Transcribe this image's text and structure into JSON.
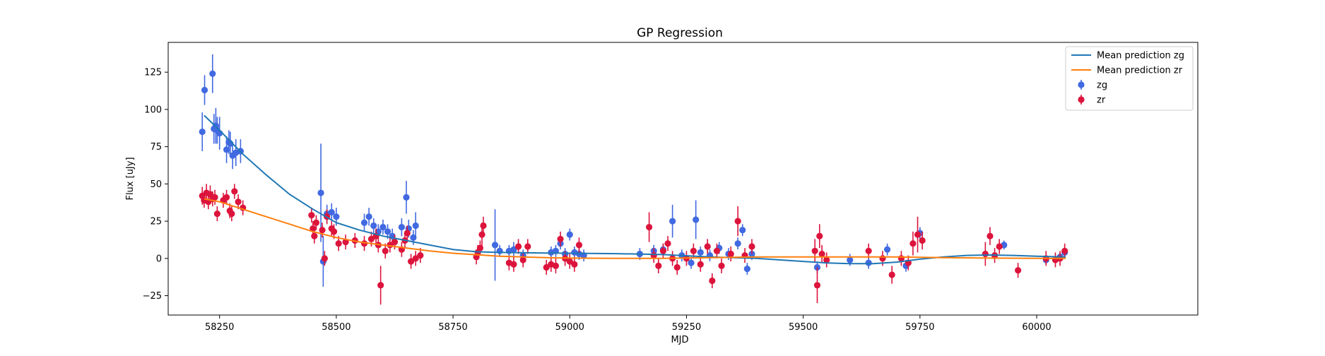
{
  "chart_data": {
    "type": "scatter",
    "title": "GP Regression",
    "xlabel": "MJD",
    "ylabel": "Flux [uJy]",
    "xlim": [
      58140,
      60345
    ],
    "ylim": [
      -38,
      145
    ],
    "xticks": [
      58250,
      58500,
      58750,
      59000,
      59250,
      59500,
      59750,
      60000
    ],
    "yticks": [
      -25,
      0,
      25,
      50,
      75,
      100,
      125
    ],
    "grid": false,
    "legend_position": "top-right",
    "colors": {
      "zg_points": "#4169e1",
      "zr_points": "#dc143c",
      "zg_line": "#1f77b4",
      "zr_line": "#ff7f0e"
    },
    "series": [
      {
        "name": "Mean prediction zg",
        "kind": "line",
        "x": [
          58217,
          58250,
          58300,
          58350,
          58400,
          58450,
          58500,
          58550,
          58600,
          58650,
          58700,
          58750,
          58800,
          58850,
          58900,
          58950,
          59000,
          59100,
          59200,
          59250,
          59300,
          59400,
          59500,
          59550,
          59600,
          59650,
          59700,
          59750,
          59800,
          59850,
          59900,
          59950,
          60000,
          60062
        ],
        "y": [
          96,
          86,
          70,
          56,
          43,
          33,
          24,
          19,
          15,
          12,
          9,
          6,
          4.5,
          4,
          3.8,
          3.6,
          3.5,
          3.2,
          2.6,
          1.8,
          1.0,
          0,
          -2,
          -3,
          -3.5,
          -3.5,
          -2.5,
          -0.5,
          1,
          2,
          2.3,
          2,
          1.5,
          1
        ]
      },
      {
        "name": "Mean prediction zr",
        "kind": "line",
        "x": [
          58217,
          58250,
          58300,
          58350,
          58400,
          58450,
          58500,
          58550,
          58600,
          58650,
          58700,
          58750,
          58800,
          58850,
          58900,
          58950,
          59000,
          59100,
          59200,
          59300,
          59400,
          59500,
          59600,
          59700,
          59750,
          59800,
          59900,
          60000,
          60062
        ],
        "y": [
          40,
          38,
          33,
          28,
          23,
          18,
          14,
          11,
          9,
          7,
          5,
          3.5,
          2.5,
          1.5,
          1,
          0.5,
          0.2,
          0,
          0,
          0.5,
          1,
          1,
          1,
          1,
          0.8,
          0.5,
          0.2,
          0,
          0
        ]
      },
      {
        "name": "zg",
        "kind": "errorbar",
        "x": [
          58213,
          58218,
          58235,
          58238,
          58242,
          58245,
          58250,
          58265,
          58270,
          58273,
          58278,
          58285,
          58295,
          58467,
          58472,
          58480,
          58490,
          58500,
          58560,
          58570,
          58580,
          58590,
          58600,
          58610,
          58620,
          58640,
          58650,
          58655,
          58665,
          58670,
          58840,
          58850,
          58870,
          58880,
          58900,
          58960,
          58970,
          58980,
          58990,
          59000,
          59010,
          59020,
          59030,
          59150,
          59180,
          59200,
          59220,
          59240,
          59260,
          59270,
          59280,
          59300,
          59320,
          59340,
          59360,
          59370,
          59380,
          59390,
          59530,
          59600,
          59640,
          59680,
          59720,
          59750,
          59930,
          60020,
          60050,
          60060
        ],
        "y": [
          85,
          113,
          124,
          87,
          89,
          86,
          84,
          73,
          78,
          77,
          69,
          71,
          72,
          44,
          -2,
          30,
          31,
          28,
          24,
          28,
          22,
          18,
          21,
          18,
          15,
          21,
          41,
          20,
          14,
          22,
          9,
          5,
          5,
          6,
          2,
          4,
          5,
          10,
          3,
          16,
          4,
          3,
          2,
          3,
          5,
          6,
          25,
          2,
          -3,
          26,
          4,
          2,
          7,
          3,
          10,
          19,
          -7,
          3,
          -6,
          -1,
          -3,
          6,
          -5,
          17,
          9,
          -1,
          1,
          4
        ],
        "yerr": [
          13,
          10,
          13,
          10,
          12,
          9,
          11,
          9,
          8,
          8,
          9,
          9,
          8,
          33,
          17,
          6,
          6,
          6,
          6,
          6,
          5,
          5,
          5,
          5,
          5,
          6,
          11,
          6,
          5,
          9,
          24,
          4,
          4,
          5,
          4,
          4,
          4,
          4,
          4,
          4,
          4,
          4,
          4,
          4,
          4,
          4,
          11,
          4,
          4,
          13,
          4,
          4,
          4,
          4,
          4,
          4,
          4,
          4,
          4,
          4,
          4,
          4,
          4,
          4,
          3,
          3,
          3,
          4
        ]
      },
      {
        "name": "zr",
        "kind": "errorbar",
        "x": [
          58213,
          58217,
          58222,
          58226,
          58230,
          58235,
          58240,
          58245,
          58258,
          58265,
          58272,
          58276,
          58282,
          58290,
          58300,
          58447,
          58450,
          58453,
          58457,
          58470,
          58475,
          58480,
          58490,
          58495,
          58505,
          58520,
          58540,
          58560,
          58575,
          58585,
          58590,
          58595,
          58605,
          58615,
          58625,
          58640,
          58647,
          58652,
          58660,
          58670,
          58680,
          58800,
          58803,
          58808,
          58812,
          58815,
          58870,
          58880,
          58890,
          58900,
          58910,
          58950,
          58960,
          58970,
          58980,
          58990,
          59000,
          59010,
          59020,
          59170,
          59180,
          59190,
          59200,
          59210,
          59220,
          59230,
          59250,
          59265,
          59280,
          59295,
          59305,
          59315,
          59325,
          59345,
          59360,
          59375,
          59390,
          59525,
          59530,
          59535,
          59540,
          59550,
          59640,
          59670,
          59690,
          59710,
          59725,
          59735,
          59745,
          59755,
          59890,
          59900,
          59910,
          59920,
          59960,
          60020,
          60040,
          60050,
          60060
        ],
        "y": [
          42,
          39,
          44,
          38,
          43,
          40,
          41,
          30,
          39,
          41,
          32,
          30,
          45,
          38,
          34,
          29,
          20,
          15,
          24,
          19,
          0,
          28,
          20,
          18,
          10,
          11,
          12,
          10,
          13,
          15,
          9,
          -18,
          5,
          9,
          11,
          6,
          12,
          17,
          -2,
          0,
          2,
          1,
          4,
          7,
          16,
          22,
          -3,
          -4,
          8,
          -1,
          8,
          -6,
          -4,
          -5,
          13,
          0,
          -2,
          -4,
          9,
          21,
          2,
          -5,
          5,
          10,
          0,
          -6,
          0,
          5,
          -4,
          8,
          -15,
          5,
          -5,
          3,
          25,
          2,
          8,
          5,
          -18,
          15,
          3,
          -1,
          5,
          0,
          -11,
          0,
          -3,
          10,
          16,
          12,
          3,
          15,
          2,
          8,
          -8,
          0,
          -1,
          0,
          5
        ],
        "yerr": [
          6,
          5,
          6,
          5,
          6,
          5,
          5,
          5,
          5,
          5,
          5,
          5,
          5,
          5,
          5,
          5,
          5,
          5,
          5,
          5,
          5,
          5,
          5,
          5,
          5,
          5,
          5,
          5,
          5,
          5,
          5,
          13,
          5,
          5,
          5,
          5,
          5,
          5,
          5,
          5,
          5,
          5,
          5,
          5,
          8,
          6,
          5,
          5,
          5,
          5,
          5,
          5,
          5,
          5,
          5,
          5,
          5,
          5,
          5,
          10,
          5,
          5,
          5,
          5,
          5,
          5,
          5,
          5,
          5,
          5,
          5,
          5,
          5,
          5,
          10,
          5,
          5,
          8,
          12,
          8,
          6,
          5,
          5,
          5,
          6,
          5,
          5,
          8,
          12,
          6,
          8,
          6,
          5,
          5,
          5,
          5,
          5,
          5,
          5
        ]
      }
    ]
  }
}
